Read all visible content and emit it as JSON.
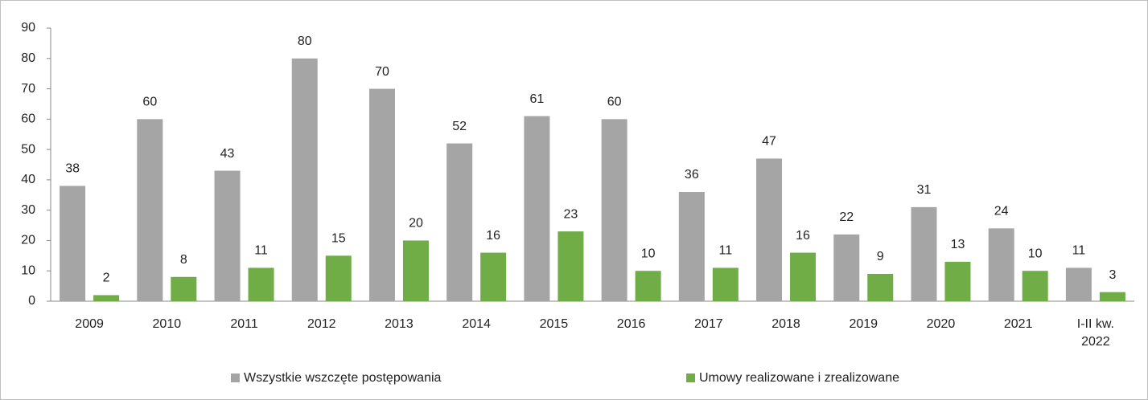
{
  "chart_data": {
    "type": "bar",
    "categories": [
      "2009",
      "2010",
      "2011",
      "2012",
      "2013",
      "2014",
      "2015",
      "2016",
      "2017",
      "2018",
      "2019",
      "2020",
      "2021",
      "I-II kw. 2022"
    ],
    "series": [
      {
        "name": "Wszystkie wszczęte postępowania",
        "color": "#a5a5a5",
        "values": [
          38,
          60,
          43,
          80,
          70,
          52,
          61,
          60,
          36,
          47,
          22,
          31,
          24,
          11
        ]
      },
      {
        "name": "Umowy realizowane i zrealizowane",
        "color": "#70ad47",
        "values": [
          2,
          8,
          11,
          15,
          20,
          16,
          23,
          10,
          11,
          16,
          9,
          13,
          10,
          3
        ]
      }
    ],
    "ylim": [
      0,
      90
    ],
    "yticks": [
      0,
      10,
      20,
      30,
      40,
      50,
      60,
      70,
      80,
      90
    ],
    "legend": "bottom"
  }
}
